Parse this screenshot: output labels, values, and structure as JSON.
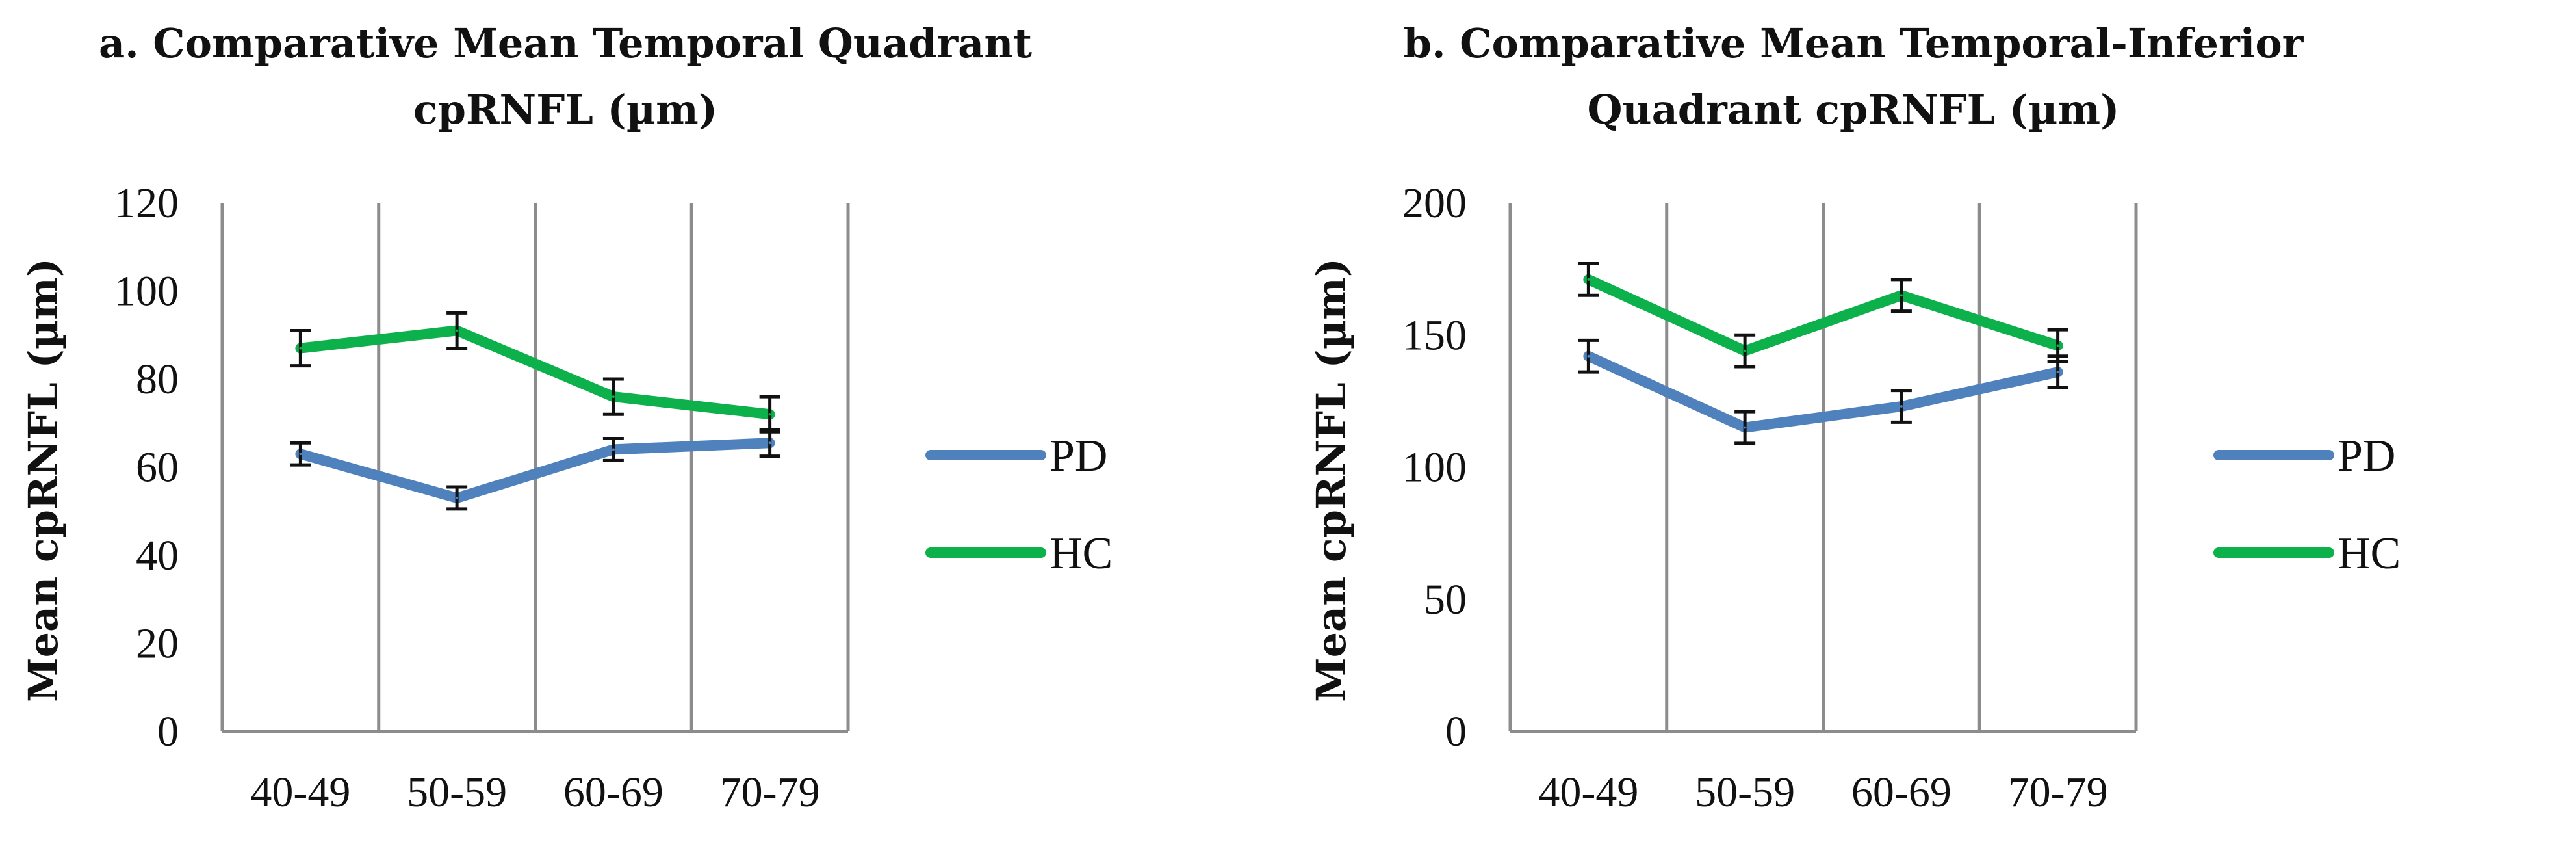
{
  "colors": {
    "PD": "#4f81bd",
    "HC": "#0cb14b",
    "grid": "#8c8c8c",
    "errorbar": "#111111"
  },
  "chart_data": [
    {
      "type": "line",
      "title_lines": [
        "a. Comparative Mean Temporal Quadrant",
        "cpRNFL (µm)"
      ],
      "ylabel": "Mean cpRNFL (µm)",
      "xlabel": "",
      "categories": [
        "40-49",
        "50-59",
        "60-69",
        "70-79"
      ],
      "ylim": [
        0,
        120
      ],
      "yticks": [
        "0",
        "20",
        "40",
        "60",
        "80",
        "100",
        "120"
      ],
      "legend_position": "right",
      "series": [
        {
          "name": "PD",
          "values": [
            63,
            53,
            64,
            65.5
          ],
          "error": [
            2.5,
            2.5,
            2.5,
            3
          ]
        },
        {
          "name": "HC",
          "values": [
            87,
            91,
            76,
            72
          ],
          "error": [
            4,
            4,
            4,
            4
          ]
        }
      ]
    },
    {
      "type": "line",
      "title_lines": [
        "b. Comparative Mean Temporal-Inferior",
        "Quadrant cpRNFL (µm)"
      ],
      "ylabel": "Mean cpRNFL (µm)",
      "xlabel": "",
      "categories": [
        "40-49",
        "50-59",
        "60-69",
        "70-79"
      ],
      "ylim": [
        0,
        200
      ],
      "yticks": [
        "0",
        "50",
        "100",
        "150",
        "200"
      ],
      "legend_position": "right",
      "series": [
        {
          "name": "PD",
          "values": [
            142,
            115,
            123,
            136
          ],
          "error": [
            6,
            6,
            6,
            6
          ]
        },
        {
          "name": "HC",
          "values": [
            171,
            144,
            165,
            146
          ],
          "error": [
            6,
            6,
            6,
            6
          ]
        }
      ]
    }
  ]
}
